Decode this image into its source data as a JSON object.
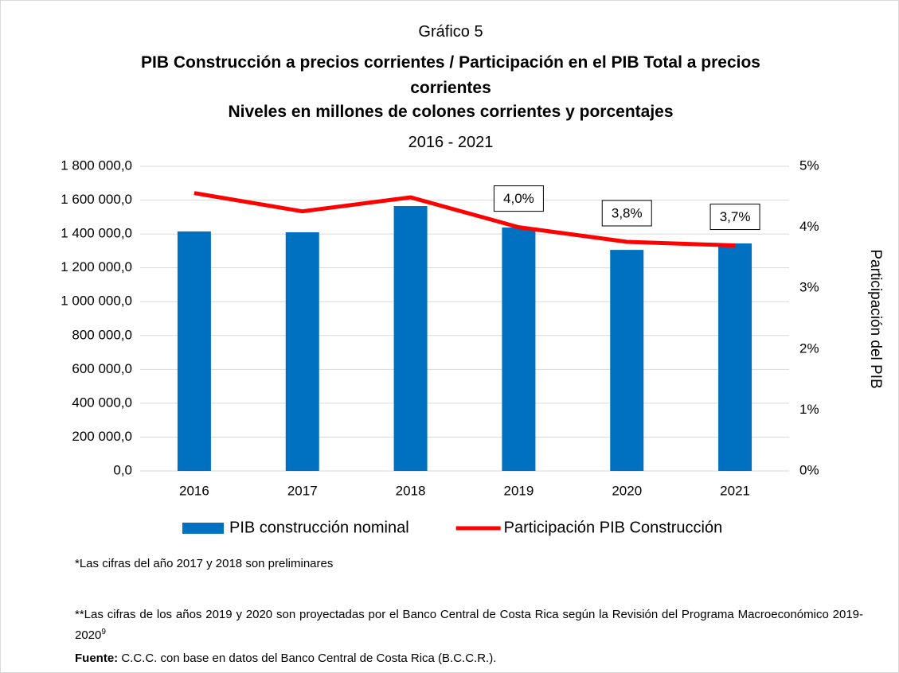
{
  "chart_data": {
    "type": "bar_line",
    "caption": "Gráfico 5",
    "title": "PIB Construcción a precios corrientes / Participación en el PIB Total a precios corrientes",
    "subtitle": "Niveles en millones de colones corrientes y porcentajes",
    "period": "2016 - 2021",
    "y2_label": "Participación del PIB",
    "categories": [
      "2016",
      "2017",
      "2018",
      "2019",
      "2020",
      "2021"
    ],
    "series": [
      {
        "name": "PIB construcción nominal",
        "color": "#0070c0",
        "kind": "bar",
        "values": [
          1415000,
          1410000,
          1565000,
          1438000,
          1306000,
          1344000
        ]
      },
      {
        "name": "Participación PIB Construcción",
        "color": "#ff0000",
        "kind": "line",
        "axis": "y2",
        "values": [
          4.56,
          4.26,
          4.49,
          4.0,
          3.76,
          3.7
        ],
        "value_labels": [
          null,
          null,
          null,
          "4,0%",
          "3,8%",
          "3,7%"
        ]
      }
    ],
    "ylim": [
      0,
      1800000
    ],
    "yticks": [
      {
        "value": 0,
        "label": "0,0"
      },
      {
        "value": 200000,
        "label": "200 000,0"
      },
      {
        "value": 400000,
        "label": "400 000,0"
      },
      {
        "value": 600000,
        "label": "600 000,0"
      },
      {
        "value": 800000,
        "label": "800 000,0"
      },
      {
        "value": 1000000,
        "label": "1 000 000,0"
      },
      {
        "value": 1200000,
        "label": "1 200 000,0"
      },
      {
        "value": 1400000,
        "label": "1 400 000,0"
      },
      {
        "value": 1600000,
        "label": "1 600 000,0"
      },
      {
        "value": 1800000,
        "label": "1 800 000,0"
      }
    ],
    "y2lim": [
      0,
      5
    ],
    "y2ticks": [
      {
        "value": 0,
        "label": "0%"
      },
      {
        "value": 1,
        "label": "1%"
      },
      {
        "value": 2,
        "label": "2%"
      },
      {
        "value": 3,
        "label": "3%"
      },
      {
        "value": 4,
        "label": "4%"
      },
      {
        "value": 5,
        "label": "5%"
      }
    ],
    "grid": true,
    "legend": "bottom"
  },
  "notes": [
    "*Las cifras del año 2017 y 2018 son preliminares",
    "**Las cifras de los años 2019 y 2020 son proyectadas por el Banco Central de Costa Rica según la Revisión del Programa Macroeconómico 2019-2020"
  ],
  "footnote_mark": "9",
  "source": {
    "label": "Fuente:",
    "text": "C.C.C. con base en datos del Banco Central de Costa Rica (B.C.C.R.)."
  }
}
